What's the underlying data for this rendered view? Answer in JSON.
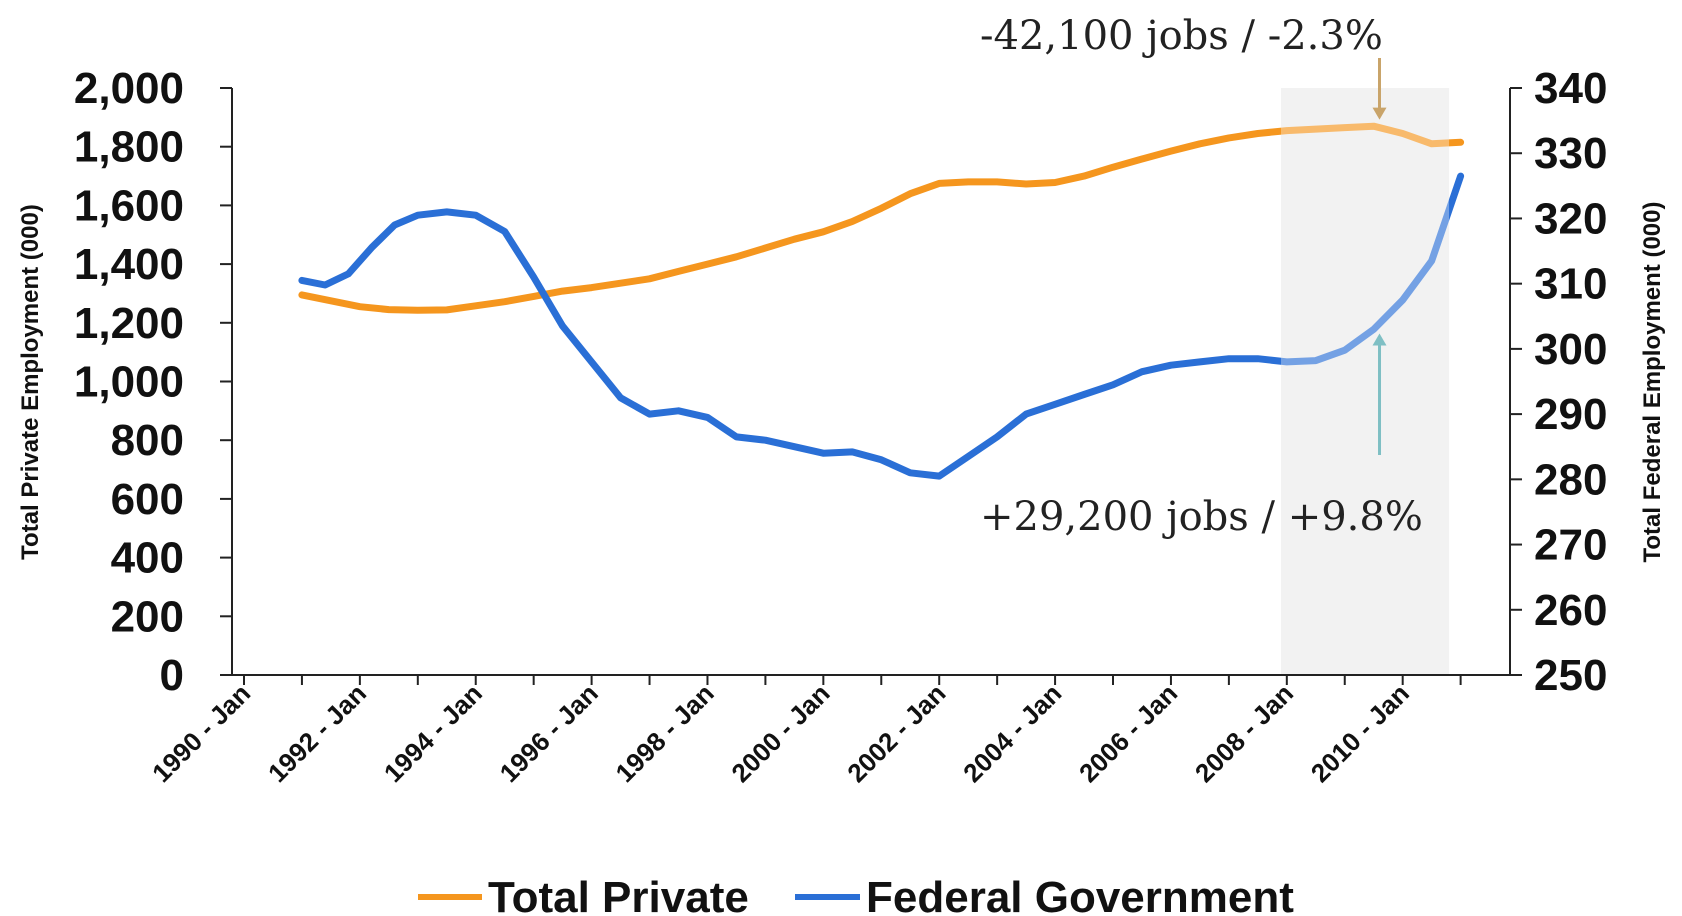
{
  "chart_data": {
    "type": "line",
    "xlabel": "",
    "ylabel_left": "Total Private Employment (000)",
    "ylabel_right": "Total Federal Employment (000)",
    "ylim_left": [
      0,
      2000
    ],
    "ylim_right": [
      250,
      340
    ],
    "x_tick_labels": [
      "1990 - Jan",
      "1992 - Jan",
      "1994 - Jan",
      "1996 - Jan",
      "1998 - Jan",
      "2000 - Jan",
      "2002 - Jan",
      "2004 - Jan",
      "2006 - Jan",
      "2008 - Jan",
      "2010 - Jan"
    ],
    "y_left_ticks": [
      "0",
      "200",
      "400",
      "600",
      "800",
      "1,000",
      "1,200",
      "1,400",
      "1,600",
      "1,800",
      "2,000"
    ],
    "y_right_ticks": [
      "250",
      "260",
      "270",
      "280",
      "290",
      "300",
      "310",
      "320",
      "330",
      "340"
    ],
    "grid": false,
    "legend_position": "bottom",
    "shaded_region": {
      "x": [
        2007.9,
        2010.8
      ]
    },
    "series": [
      {
        "name": "Total Private",
        "axis": "left",
        "color": "#f5961e",
        "x": [
          1991.0,
          1991.5,
          1992.0,
          1992.5,
          1993.0,
          1993.5,
          1994.0,
          1994.5,
          1995.0,
          1995.5,
          1996.0,
          1996.5,
          1997.0,
          1997.5,
          1998.0,
          1998.5,
          1999.0,
          1999.5,
          2000.0,
          2000.5,
          2001.0,
          2001.5,
          2002.0,
          2002.5,
          2003.0,
          2003.5,
          2004.0,
          2004.5,
          2005.0,
          2005.5,
          2006.0,
          2006.5,
          2007.0,
          2007.5,
          2008.0,
          2008.5,
          2009.0,
          2009.5,
          2010.0,
          2010.5,
          2011.0
        ],
        "values": [
          1295,
          1275,
          1255,
          1245,
          1243,
          1244,
          1258,
          1272,
          1290,
          1308,
          1320,
          1335,
          1350,
          1375,
          1400,
          1425,
          1455,
          1485,
          1510,
          1545,
          1590,
          1640,
          1675,
          1680,
          1680,
          1673,
          1678,
          1700,
          1730,
          1758,
          1785,
          1810,
          1830,
          1845,
          1855,
          1860,
          1865,
          1870,
          1845,
          1810,
          1815
        ]
      },
      {
        "name": "Federal Government",
        "axis": "right",
        "color": "#2a6fd6",
        "x": [
          1991.0,
          1991.4,
          1991.8,
          1992.2,
          1992.6,
          1993.0,
          1993.5,
          1994.0,
          1994.5,
          1995.0,
          1995.5,
          1996.0,
          1996.5,
          1997.0,
          1997.5,
          1998.0,
          1998.5,
          1999.0,
          1999.5,
          2000.0,
          2000.5,
          2001.0,
          2001.5,
          2002.0,
          2002.5,
          2003.0,
          2003.5,
          2004.0,
          2004.5,
          2005.0,
          2005.5,
          2006.0,
          2006.5,
          2007.0,
          2007.5,
          2008.0,
          2008.5,
          2009.0,
          2009.5,
          2010.0,
          2010.5,
          2011.0
        ],
        "values": [
          310.5,
          309.8,
          311.5,
          315.5,
          319.0,
          320.5,
          321.0,
          320.5,
          318.0,
          311.0,
          303.5,
          298.0,
          292.5,
          290.0,
          290.5,
          289.5,
          286.5,
          286.0,
          285.0,
          284.0,
          284.2,
          283.0,
          281.0,
          280.5,
          283.5,
          286.5,
          290.0,
          291.5,
          293.0,
          294.5,
          296.5,
          297.5,
          298.0,
          298.5,
          298.5,
          298.0,
          298.2,
          299.8,
          303.0,
          307.5,
          313.5,
          326.5
        ]
      }
    ],
    "annotations": [
      {
        "text": "-42,100 jobs / -2.3%",
        "series": "Total Private",
        "x": 2009.6,
        "color": "#c9a46a"
      },
      {
        "text": "+29,200 jobs / +9.8%",
        "series": "Federal Government",
        "x": 2009.6,
        "color": "#7fbfc4"
      }
    ]
  }
}
